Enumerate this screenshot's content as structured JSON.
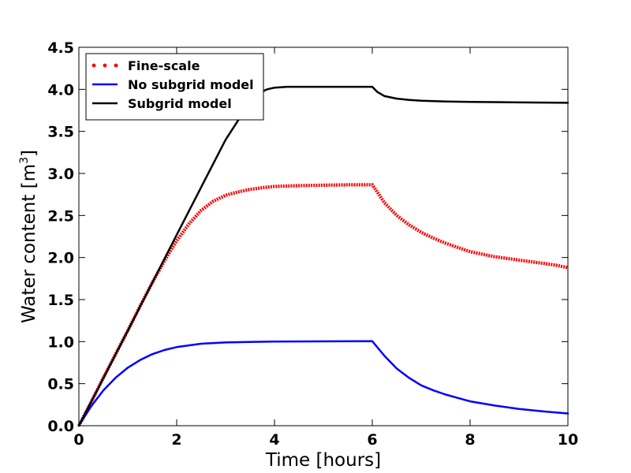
{
  "chart_data": {
    "type": "line",
    "title": "",
    "xlabel": "Time [hours]",
    "ylabel": {
      "text": "Water content [m",
      "superscript": "3",
      "suffix": "]"
    },
    "xlim": [
      0,
      10
    ],
    "ylim": [
      0,
      4.5
    ],
    "x_ticks": [
      0,
      2,
      4,
      6,
      8,
      10
    ],
    "x_tick_labels": [
      "0",
      "2",
      "4",
      "6",
      "8",
      "10"
    ],
    "y_ticks": [
      0,
      0.5,
      1,
      1.5,
      2,
      2.5,
      3,
      3.5,
      4,
      4.5
    ],
    "y_tick_labels": [
      "0.0",
      "0.5",
      "1.0",
      "1.5",
      "2.0",
      "2.5",
      "3.0",
      "3.5",
      "4.0",
      "4.5"
    ],
    "grid": false,
    "legend_position": "top-left",
    "series": [
      {
        "name": "Fine-scale",
        "style": "dotted",
        "color": "#ff0000",
        "x": [
          0,
          0.25,
          0.5,
          0.75,
          1,
          1.25,
          1.5,
          1.75,
          2,
          2.25,
          2.5,
          2.75,
          3,
          3.25,
          3.5,
          3.75,
          4,
          4.5,
          5,
          5.5,
          6,
          6.1,
          6.25,
          6.5,
          6.75,
          7,
          7.25,
          7.5,
          7.75,
          8,
          8.25,
          8.5,
          8.75,
          9,
          9.25,
          9.5,
          9.75,
          10
        ],
        "y": [
          0,
          0.28,
          0.57,
          0.85,
          1.13,
          1.42,
          1.7,
          1.96,
          2.2,
          2.4,
          2.56,
          2.67,
          2.74,
          2.78,
          2.81,
          2.83,
          2.845,
          2.855,
          2.86,
          2.865,
          2.865,
          2.78,
          2.65,
          2.5,
          2.39,
          2.3,
          2.23,
          2.17,
          2.12,
          2.07,
          2.04,
          2.01,
          1.99,
          1.97,
          1.95,
          1.93,
          1.91,
          1.88
        ]
      },
      {
        "name": "No subgrid model",
        "style": "solid",
        "color": "#0000ff",
        "x": [
          0,
          0.25,
          0.5,
          0.75,
          1,
          1.25,
          1.5,
          1.75,
          2,
          2.5,
          3,
          3.5,
          4,
          5,
          6,
          6.25,
          6.5,
          6.75,
          7,
          7.25,
          7.5,
          7.75,
          8,
          8.5,
          9,
          9.5,
          10
        ],
        "y": [
          0,
          0.23,
          0.42,
          0.57,
          0.69,
          0.78,
          0.85,
          0.9,
          0.935,
          0.975,
          0.99,
          0.997,
          1.0,
          1.003,
          1.005,
          0.83,
          0.68,
          0.57,
          0.48,
          0.42,
          0.37,
          0.33,
          0.29,
          0.24,
          0.2,
          0.17,
          0.145
        ]
      },
      {
        "name": "Subgrid model",
        "style": "solid",
        "color": "#000000",
        "x": [
          0,
          1,
          2,
          3,
          3.5,
          3.7,
          3.85,
          4,
          4.25,
          4.5,
          5,
          6,
          6.1,
          6.25,
          6.5,
          6.75,
          7,
          7.5,
          8,
          9,
          10
        ],
        "y": [
          0,
          1.13,
          2.27,
          3.4,
          3.85,
          3.96,
          4.0,
          4.02,
          4.03,
          4.03,
          4.03,
          4.03,
          3.97,
          3.92,
          3.89,
          3.875,
          3.865,
          3.855,
          3.85,
          3.845,
          3.84
        ]
      }
    ]
  }
}
